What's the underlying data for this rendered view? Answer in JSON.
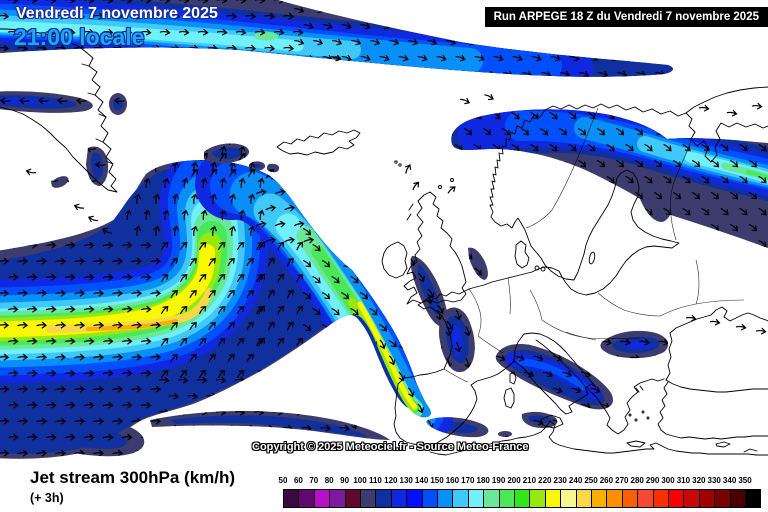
{
  "header": {
    "date_line": "Vendredi 7 novembre 2025",
    "time_line": "21:00 locale",
    "run_info": "Run ARPEGE 18 Z du Vendredi 7 novembre 2025"
  },
  "map": {
    "copyright": "Copyright © 2025 Meteociel.fr - Source Meteo-France"
  },
  "footer": {
    "title": "Jet stream 300hPa (km/h)",
    "step": "(+ 3h)"
  },
  "legend": {
    "values": [
      50,
      60,
      70,
      80,
      90,
      100,
      110,
      120,
      130,
      140,
      150,
      160,
      170,
      180,
      190,
      200,
      210,
      220,
      230,
      240,
      250,
      260,
      270,
      280,
      290,
      300,
      310,
      320,
      330,
      340,
      350
    ],
    "colors": [
      "#3c0840",
      "#600870",
      "#b810c8",
      "#8018a0",
      "#600830",
      "#3c3c6e",
      "#1030a0",
      "#1028e0",
      "#0010ff",
      "#0050ff",
      "#0890f8",
      "#40c8f8",
      "#70f0f8",
      "#68e898",
      "#48e858",
      "#30e818",
      "#98e810",
      "#f8f800",
      "#f8f890",
      "#f8d848",
      "#f8b000",
      "#f89000",
      "#f86000",
      "#f84830",
      "#f83000",
      "#f80000",
      "#c80808",
      "#a00000",
      "#780000",
      "#480000",
      "#000000"
    ]
  },
  "colors": {
    "date_text": "#ffffff",
    "time_text": "#18a8f8",
    "text_outline": "#1c2fa0",
    "run_bg": "#000000",
    "run_text": "#ffffff",
    "coastline": "#000000",
    "band_edge": "#3c3c6e"
  }
}
